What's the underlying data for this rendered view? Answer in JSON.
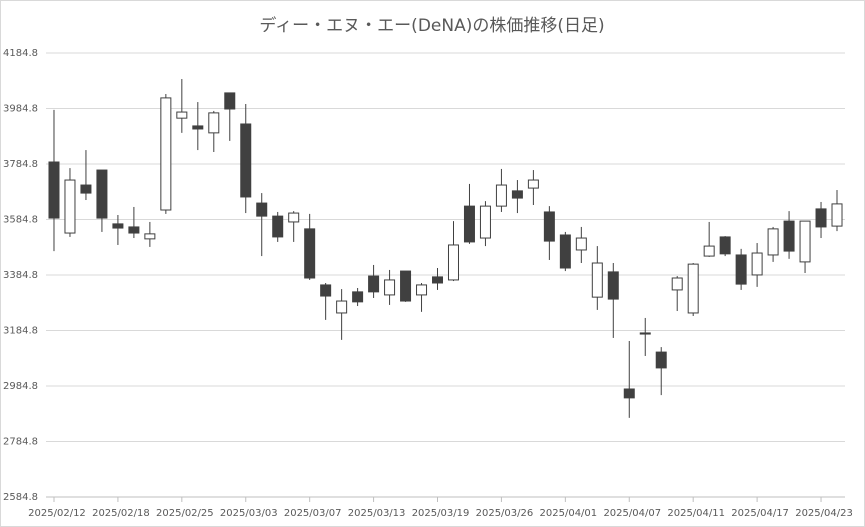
{
  "chart_data": {
    "type": "candlestick",
    "title": "ディー・エヌ・エー(DeNA)の株価推移(日足)",
    "categories": [
      "2025/02/12",
      null,
      null,
      null,
      "2025/02/18",
      null,
      null,
      null,
      "2025/02/25",
      null,
      null,
      null,
      "2025/03/03",
      null,
      null,
      null,
      "2025/03/07",
      null,
      null,
      null,
      "2025/03/13",
      null,
      null,
      null,
      "2025/03/19",
      null,
      null,
      null,
      "2025/03/26",
      null,
      null,
      null,
      "2025/04/01",
      null,
      null,
      null,
      "2025/04/07",
      null,
      null,
      null,
      "2025/04/11",
      null,
      null,
      null,
      "2025/04/17",
      null,
      null,
      null,
      "2025/04/23",
      null
    ],
    "open": [
      3792,
      3536,
      3709,
      3763,
      3569,
      3558,
      3515,
      3619,
      3950,
      3922,
      3897,
      4041,
      3929,
      3644,
      3597,
      3576,
      3551,
      3349,
      3248,
      3324,
      3381,
      3313,
      3399,
      3313,
      3378,
      3367,
      3633,
      3518,
      3633,
      3688,
      3698,
      3612,
      3529,
      3475,
      3305,
      3396,
      2974,
      3176,
      3107,
      3331,
      3248,
      3453,
      3522,
      3457,
      3385,
      3457,
      3579,
      3432,
      3623,
      3561
    ],
    "high": [
      3980,
      3770,
      3835,
      3763,
      3601,
      3630,
      3576,
      4037,
      4091,
      4008,
      3976,
      4041,
      4001,
      3680,
      3612,
      3615,
      3605,
      3356,
      3334,
      3338,
      3421,
      3403,
      3399,
      3356,
      3410,
      3579,
      3713,
      3651,
      3767,
      3727,
      3763,
      3633,
      3540,
      3558,
      3489,
      3428,
      3147,
      3230,
      3125,
      3381,
      3428,
      3576,
      3525,
      3479,
      3500,
      3558,
      3615,
      3579,
      3648,
      3691
    ],
    "low": [
      3471,
      3522,
      3655,
      3540,
      3493,
      3518,
      3486,
      3605,
      3897,
      3835,
      3828,
      3868,
      3608,
      3453,
      3504,
      3504,
      3367,
      3223,
      3151,
      3273,
      3302,
      3277,
      3288,
      3252,
      3331,
      3363,
      3497,
      3489,
      3612,
      3608,
      3637,
      3439,
      3399,
      3428,
      3259,
      3158,
      2870,
      3093,
      2952,
      3255,
      3237,
      3450,
      3453,
      3331,
      3342,
      3432,
      3443,
      3392,
      3518,
      3543
    ],
    "close": [
      3590,
      3727,
      3680,
      3590,
      3554,
      3536,
      3533,
      4023,
      3972,
      3911,
      3969,
      3983,
      3666,
      3597,
      3522,
      3608,
      3374,
      3309,
      3291,
      3288,
      3324,
      3367,
      3291,
      3349,
      3356,
      3493,
      3504,
      3633,
      3709,
      3662,
      3727,
      3507,
      3410,
      3518,
      3428,
      3298,
      2942,
      3172,
      3050,
      3374,
      3424,
      3489,
      3461,
      3352,
      3464,
      3551,
      3471,
      3579,
      3558,
      3641
    ],
    "up_color": "#ffffff",
    "down_color": "#404040",
    "edge_color": "#404040",
    "ylim": [
      2584.8,
      4184.8
    ],
    "yticks": [
      2584.8,
      2784.8,
      2984.8,
      3184.8,
      3384.8,
      3584.8,
      3784.8,
      3984.8,
      4184.8
    ],
    "grid": true
  }
}
